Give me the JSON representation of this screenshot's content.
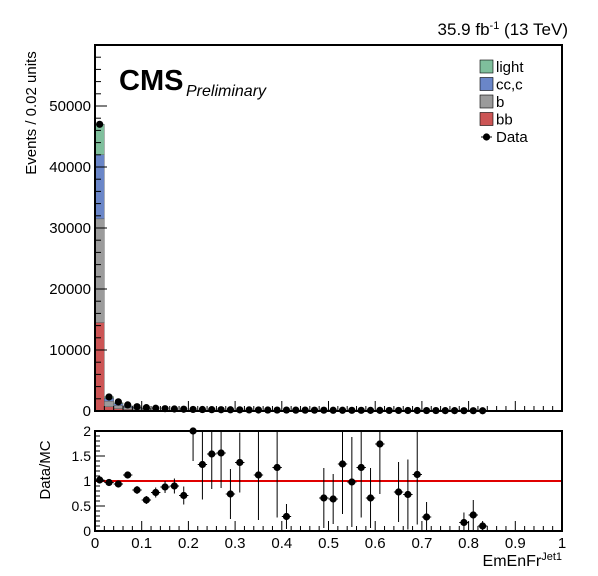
{
  "header": {
    "lumi_prefix": "35.9 fb",
    "lumi_exponent": "-1",
    "lumi_suffix": " (13 TeV)",
    "cms_label": "CMS",
    "preliminary_label": "Preliminary"
  },
  "colors": {
    "light": "#7fbf9c",
    "cc_c": "#6a86c8",
    "b": "#9b9b9b",
    "bb": "#cc5555",
    "data": "#000000",
    "ratio_line": "#e00000"
  },
  "chart_data": [
    {
      "type": "bar",
      "stacked": true,
      "ylabel": "Events / 0.02 units",
      "xlim": [
        0,
        1
      ],
      "ylim": [
        0,
        60000
      ],
      "yticks": [
        0,
        10000,
        20000,
        30000,
        40000,
        50000
      ],
      "ytick_labels": [
        "0",
        "10000",
        "20000",
        "30000",
        "40000",
        "50000"
      ],
      "bin_width": 0.02,
      "legend_position": "top-right",
      "legend": [
        {
          "label": "light",
          "kind": "fill",
          "color_key": "light"
        },
        {
          "label": "cc,c",
          "kind": "fill",
          "color_key": "cc_c"
        },
        {
          "label": "b",
          "kind": "fill",
          "color_key": "b"
        },
        {
          "label": "bb",
          "kind": "fill",
          "color_key": "bb"
        },
        {
          "label": "Data",
          "kind": "marker",
          "color_key": "data"
        }
      ],
      "series": [
        {
          "name": "bb",
          "color_key": "bb",
          "bins": [
            [
              0.0,
              14500
            ],
            [
              0.02,
              700
            ],
            [
              0.04,
              400
            ],
            [
              0.06,
              250
            ],
            [
              0.08,
              180
            ],
            [
              0.1,
              120
            ]
          ]
        },
        {
          "name": "b",
          "color_key": "b",
          "bins": [
            [
              0.0,
              17000
            ],
            [
              0.02,
              900
            ],
            [
              0.04,
              500
            ],
            [
              0.06,
              320
            ],
            [
              0.08,
              230
            ],
            [
              0.1,
              150
            ]
          ]
        },
        {
          "name": "cc,c",
          "color_key": "cc_c",
          "bins": [
            [
              0.0,
              10500
            ],
            [
              0.02,
              500
            ],
            [
              0.04,
              300
            ],
            [
              0.06,
              200
            ],
            [
              0.08,
              150
            ],
            [
              0.1,
              100
            ]
          ]
        },
        {
          "name": "light",
          "color_key": "light",
          "bins": [
            [
              0.0,
              5000
            ],
            [
              0.02,
              250
            ],
            [
              0.04,
              150
            ],
            [
              0.06,
              100
            ],
            [
              0.08,
              80
            ],
            [
              0.1,
              60
            ]
          ]
        }
      ],
      "data_points": [
        [
          0.01,
          47000
        ],
        [
          0.03,
          2300
        ],
        [
          0.05,
          1500
        ],
        [
          0.07,
          1000
        ],
        [
          0.09,
          700
        ],
        [
          0.11,
          550
        ],
        [
          0.13,
          450
        ],
        [
          0.15,
          380
        ],
        [
          0.17,
          330
        ],
        [
          0.19,
          290
        ],
        [
          0.21,
          260
        ],
        [
          0.23,
          240
        ],
        [
          0.25,
          220
        ],
        [
          0.27,
          210
        ],
        [
          0.29,
          200
        ],
        [
          0.31,
          190
        ],
        [
          0.33,
          180
        ],
        [
          0.35,
          170
        ],
        [
          0.37,
          160
        ],
        [
          0.39,
          150
        ],
        [
          0.41,
          150
        ],
        [
          0.43,
          140
        ],
        [
          0.45,
          140
        ],
        [
          0.47,
          130
        ],
        [
          0.49,
          130
        ],
        [
          0.51,
          120
        ],
        [
          0.53,
          120
        ],
        [
          0.55,
          110
        ],
        [
          0.57,
          110
        ],
        [
          0.59,
          100
        ],
        [
          0.61,
          100
        ],
        [
          0.63,
          90
        ],
        [
          0.65,
          90
        ],
        [
          0.67,
          80
        ],
        [
          0.69,
          80
        ],
        [
          0.71,
          70
        ],
        [
          0.73,
          70
        ],
        [
          0.75,
          60
        ],
        [
          0.77,
          60
        ],
        [
          0.79,
          50
        ],
        [
          0.81,
          50
        ],
        [
          0.83,
          40
        ]
      ]
    },
    {
      "type": "scatter",
      "ylabel": "Data/MC",
      "xlabel": "EmEnFr",
      "xlabel_superscript": "Jet1",
      "xlim": [
        0,
        1
      ],
      "ylim": [
        0,
        2
      ],
      "xticks": [
        0,
        0.1,
        0.2,
        0.3,
        0.4,
        0.5,
        0.6,
        0.7,
        0.8,
        0.9,
        1
      ],
      "xtick_labels": [
        "0",
        "0.1",
        "0.2",
        "0.3",
        "0.4",
        "0.5",
        "0.6",
        "0.7",
        "0.8",
        "0.9",
        "1"
      ],
      "yticks": [
        0,
        0.5,
        1,
        1.5,
        2
      ],
      "ytick_labels": [
        "0",
        "0.5",
        "1",
        "1.5",
        "2"
      ],
      "reference_line": 1,
      "points": [
        {
          "x": 0.01,
          "y": 1.02,
          "err": 0.01
        },
        {
          "x": 0.03,
          "y": 0.97,
          "err": 0.03
        },
        {
          "x": 0.05,
          "y": 0.94,
          "err": 0.04
        },
        {
          "x": 0.07,
          "y": 1.12,
          "err": 0.06
        },
        {
          "x": 0.09,
          "y": 0.82,
          "err": 0.08
        },
        {
          "x": 0.11,
          "y": 0.62,
          "err": 0.08
        },
        {
          "x": 0.13,
          "y": 0.77,
          "err": 0.1
        },
        {
          "x": 0.15,
          "y": 0.88,
          "err": 0.12
        },
        {
          "x": 0.17,
          "y": 0.9,
          "err": 0.15
        },
        {
          "x": 0.19,
          "y": 0.71,
          "err": 0.18
        },
        {
          "x": 0.21,
          "y": 2.0,
          "err": 0.6
        },
        {
          "x": 0.23,
          "y": 1.33,
          "err": 0.7
        },
        {
          "x": 0.25,
          "y": 1.54,
          "err": 0.7
        },
        {
          "x": 0.27,
          "y": 1.56,
          "err": 0.7
        },
        {
          "x": 0.29,
          "y": 0.74,
          "err": 0.5
        },
        {
          "x": 0.31,
          "y": 1.37,
          "err": 0.6
        },
        {
          "x": 0.35,
          "y": 1.12,
          "err": 0.9
        },
        {
          "x": 0.39,
          "y": 1.27,
          "err": 1.0
        },
        {
          "x": 0.41,
          "y": 0.29,
          "err": 0.25
        },
        {
          "x": 0.49,
          "y": 0.66,
          "err": 0.6
        },
        {
          "x": 0.51,
          "y": 0.64,
          "err": 0.5
        },
        {
          "x": 0.53,
          "y": 1.34,
          "err": 1.0
        },
        {
          "x": 0.55,
          "y": 0.98,
          "err": 0.9
        },
        {
          "x": 0.57,
          "y": 1.27,
          "err": 1.0
        },
        {
          "x": 0.59,
          "y": 0.66,
          "err": 0.6
        },
        {
          "x": 0.61,
          "y": 1.74,
          "err": 1.0
        },
        {
          "x": 0.65,
          "y": 0.78,
          "err": 0.6
        },
        {
          "x": 0.67,
          "y": 0.73,
          "err": 0.7
        },
        {
          "x": 0.69,
          "y": 1.13,
          "err": 1.0
        },
        {
          "x": 0.71,
          "y": 0.28,
          "err": 0.3
        },
        {
          "x": 0.79,
          "y": 0.17,
          "err": 0.2
        },
        {
          "x": 0.81,
          "y": 0.32,
          "err": 0.3
        },
        {
          "x": 0.83,
          "y": 0.1,
          "err": 0.1
        }
      ]
    }
  ]
}
